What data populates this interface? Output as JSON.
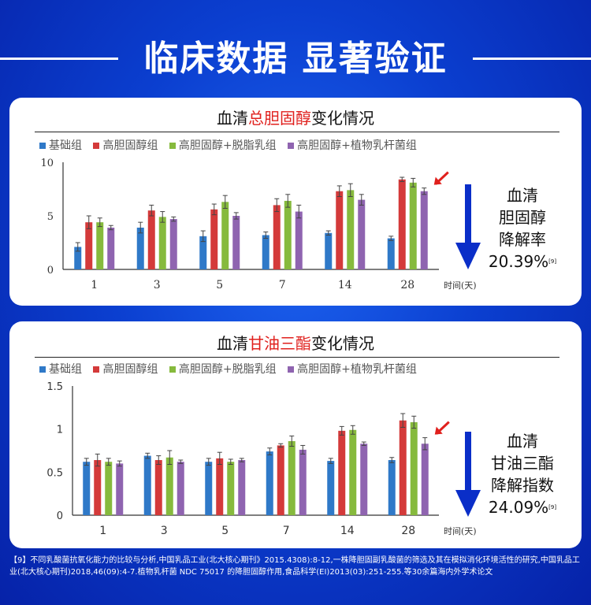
{
  "header": {
    "title": "临床数据 显著验证"
  },
  "colors": {
    "base": "#2f79c8",
    "high": "#d43a3a",
    "skim": "#86ba3d",
    "plant": "#8f64b0",
    "accent": "#e0201d"
  },
  "legend": [
    {
      "key": "base",
      "label": "基础组"
    },
    {
      "key": "high",
      "label": "高胆固醇组"
    },
    {
      "key": "skim",
      "label": "高胆固醇+脱脂乳组"
    },
    {
      "key": "plant",
      "label": "高胆固醇+植物乳杆菌组"
    }
  ],
  "chart_data": [
    {
      "type": "bar",
      "title_prefix": "血清",
      "title_highlight": "总胆固醇",
      "title_suffix": "变化情况",
      "categories": [
        "1",
        "3",
        "5",
        "7",
        "14",
        "28"
      ],
      "xlabel": "时间(天)",
      "ylim": [
        0,
        10
      ],
      "yticks": [
        "0",
        "5",
        "10"
      ],
      "ytick_values": [
        0,
        5,
        10
      ],
      "grid": false,
      "legend_position": "top",
      "series": [
        {
          "name": "基础组",
          "values": [
            2.1,
            3.9,
            3.1,
            3.2,
            3.4,
            2.9
          ],
          "err": [
            0.4,
            0.5,
            0.5,
            0.3,
            0.2,
            0.2
          ]
        },
        {
          "name": "高胆固醇组",
          "values": [
            4.4,
            5.5,
            5.6,
            6.0,
            7.3,
            8.4
          ],
          "err": [
            0.6,
            0.5,
            0.5,
            0.6,
            0.5,
            0.2
          ]
        },
        {
          "name": "高胆固醇+脱脂乳组",
          "values": [
            4.4,
            4.9,
            6.3,
            6.4,
            7.4,
            8.1
          ],
          "err": [
            0.4,
            0.5,
            0.6,
            0.6,
            0.6,
            0.4
          ]
        },
        {
          "name": "高胆固醇+植物乳杆菌组",
          "values": [
            3.9,
            4.7,
            5.0,
            5.4,
            6.5,
            7.3
          ],
          "err": [
            0.2,
            0.2,
            0.3,
            0.6,
            0.5,
            0.3
          ]
        }
      ],
      "side": {
        "line1": "血清",
        "line2": "胆固醇",
        "line3": "降解率",
        "pct": "20.39%",
        "ref": "[9]"
      }
    },
    {
      "type": "bar",
      "title_prefix": "血清",
      "title_highlight": "甘油三酯",
      "title_suffix": "变化情况",
      "categories": [
        "1",
        "3",
        "5",
        "7",
        "14",
        "28"
      ],
      "xlabel": "时间(天)",
      "ylim": [
        0,
        1.5
      ],
      "yticks": [
        "0",
        "0.5",
        "1",
        "1.5"
      ],
      "ytick_values": [
        0,
        0.5,
        1,
        1.5
      ],
      "grid": false,
      "legend_position": "top",
      "series": [
        {
          "name": "基础组",
          "values": [
            0.62,
            0.69,
            0.62,
            0.74,
            0.63,
            0.64
          ],
          "err": [
            0.04,
            0.03,
            0.04,
            0.04,
            0.03,
            0.03
          ]
        },
        {
          "name": "高胆固醇组",
          "values": [
            0.64,
            0.64,
            0.66,
            0.81,
            0.98,
            1.1
          ],
          "err": [
            0.07,
            0.05,
            0.07,
            0.02,
            0.05,
            0.08
          ]
        },
        {
          "name": "高胆固醇+脱脂乳组",
          "values": [
            0.62,
            0.67,
            0.62,
            0.86,
            0.99,
            1.08
          ],
          "err": [
            0.04,
            0.08,
            0.03,
            0.06,
            0.05,
            0.07
          ]
        },
        {
          "name": "高胆固醇+植物乳杆菌组",
          "values": [
            0.6,
            0.62,
            0.64,
            0.76,
            0.83,
            0.83
          ],
          "err": [
            0.03,
            0.02,
            0.02,
            0.05,
            0.02,
            0.07
          ]
        }
      ],
      "side": {
        "line1": "血清",
        "line2": "甘油三酯",
        "line3": "降解指数",
        "pct": "24.09%",
        "ref": "[9]"
      }
    }
  ],
  "footnote": "【9】不同乳酸菌抗氧化能力的比较与分析,中国乳品工业(北大核心期刊》2015.4308):8-12,一株降胆固副乳酸菌的筛选及其在模拟消化环境活性的研究,中国乳品工业(北大核心期刊)2018,46(09):4-7.植物乳杆菌 NDC 75017 的降胆固醇作用,食品科学(EI)2013(03):251-255.等30余篇海内外学术论文"
}
